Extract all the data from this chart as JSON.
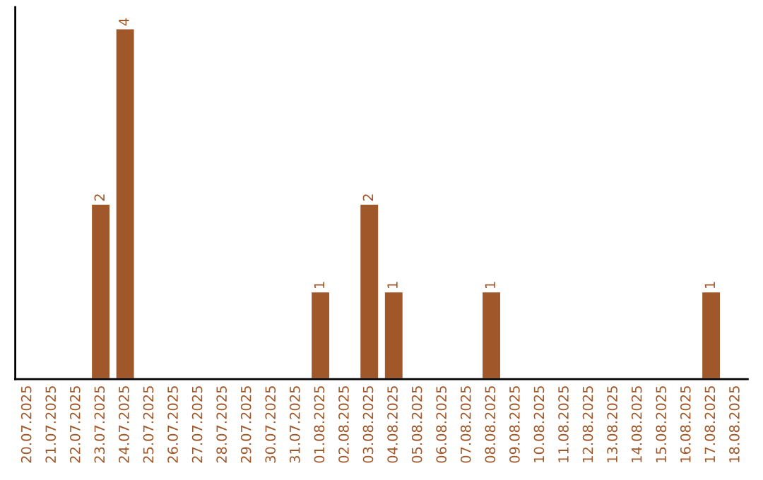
{
  "chart_data": {
    "type": "bar",
    "categories": [
      "20.07.2025",
      "21.07.2025",
      "22.07.2025",
      "23.07.2025",
      "24.07.2025",
      "25.07.2025",
      "26.07.2025",
      "27.07.2025",
      "28.07.2025",
      "29.07.2025",
      "30.07.2025",
      "31.07.2025",
      "01.08.2025",
      "02.08.2025",
      "03.08.2025",
      "04.08.2025",
      "05.08.2025",
      "06.08.2025",
      "07.08.2025",
      "08.08.2025",
      "09.08.2025",
      "10.08.2025",
      "11.08.2025",
      "12.08.2025",
      "13.08.2025",
      "14.08.2025",
      "15.08.2025",
      "16.08.2025",
      "17.08.2025",
      "18.08.2025"
    ],
    "values": [
      null,
      null,
      null,
      2,
      4,
      null,
      null,
      null,
      null,
      null,
      null,
      null,
      1,
      null,
      2,
      1,
      null,
      null,
      null,
      1,
      null,
      null,
      null,
      null,
      null,
      null,
      null,
      null,
      1,
      null
    ],
    "value_labels": [
      null,
      null,
      null,
      "2",
      "4",
      null,
      null,
      null,
      null,
      null,
      null,
      null,
      "1",
      null,
      "2",
      "1",
      null,
      null,
      null,
      "1",
      null,
      null,
      null,
      null,
      null,
      null,
      null,
      null,
      "1",
      null
    ],
    "color": "#a0582a",
    "tick_labels": "x",
    "grid": false,
    "legend": false
  }
}
